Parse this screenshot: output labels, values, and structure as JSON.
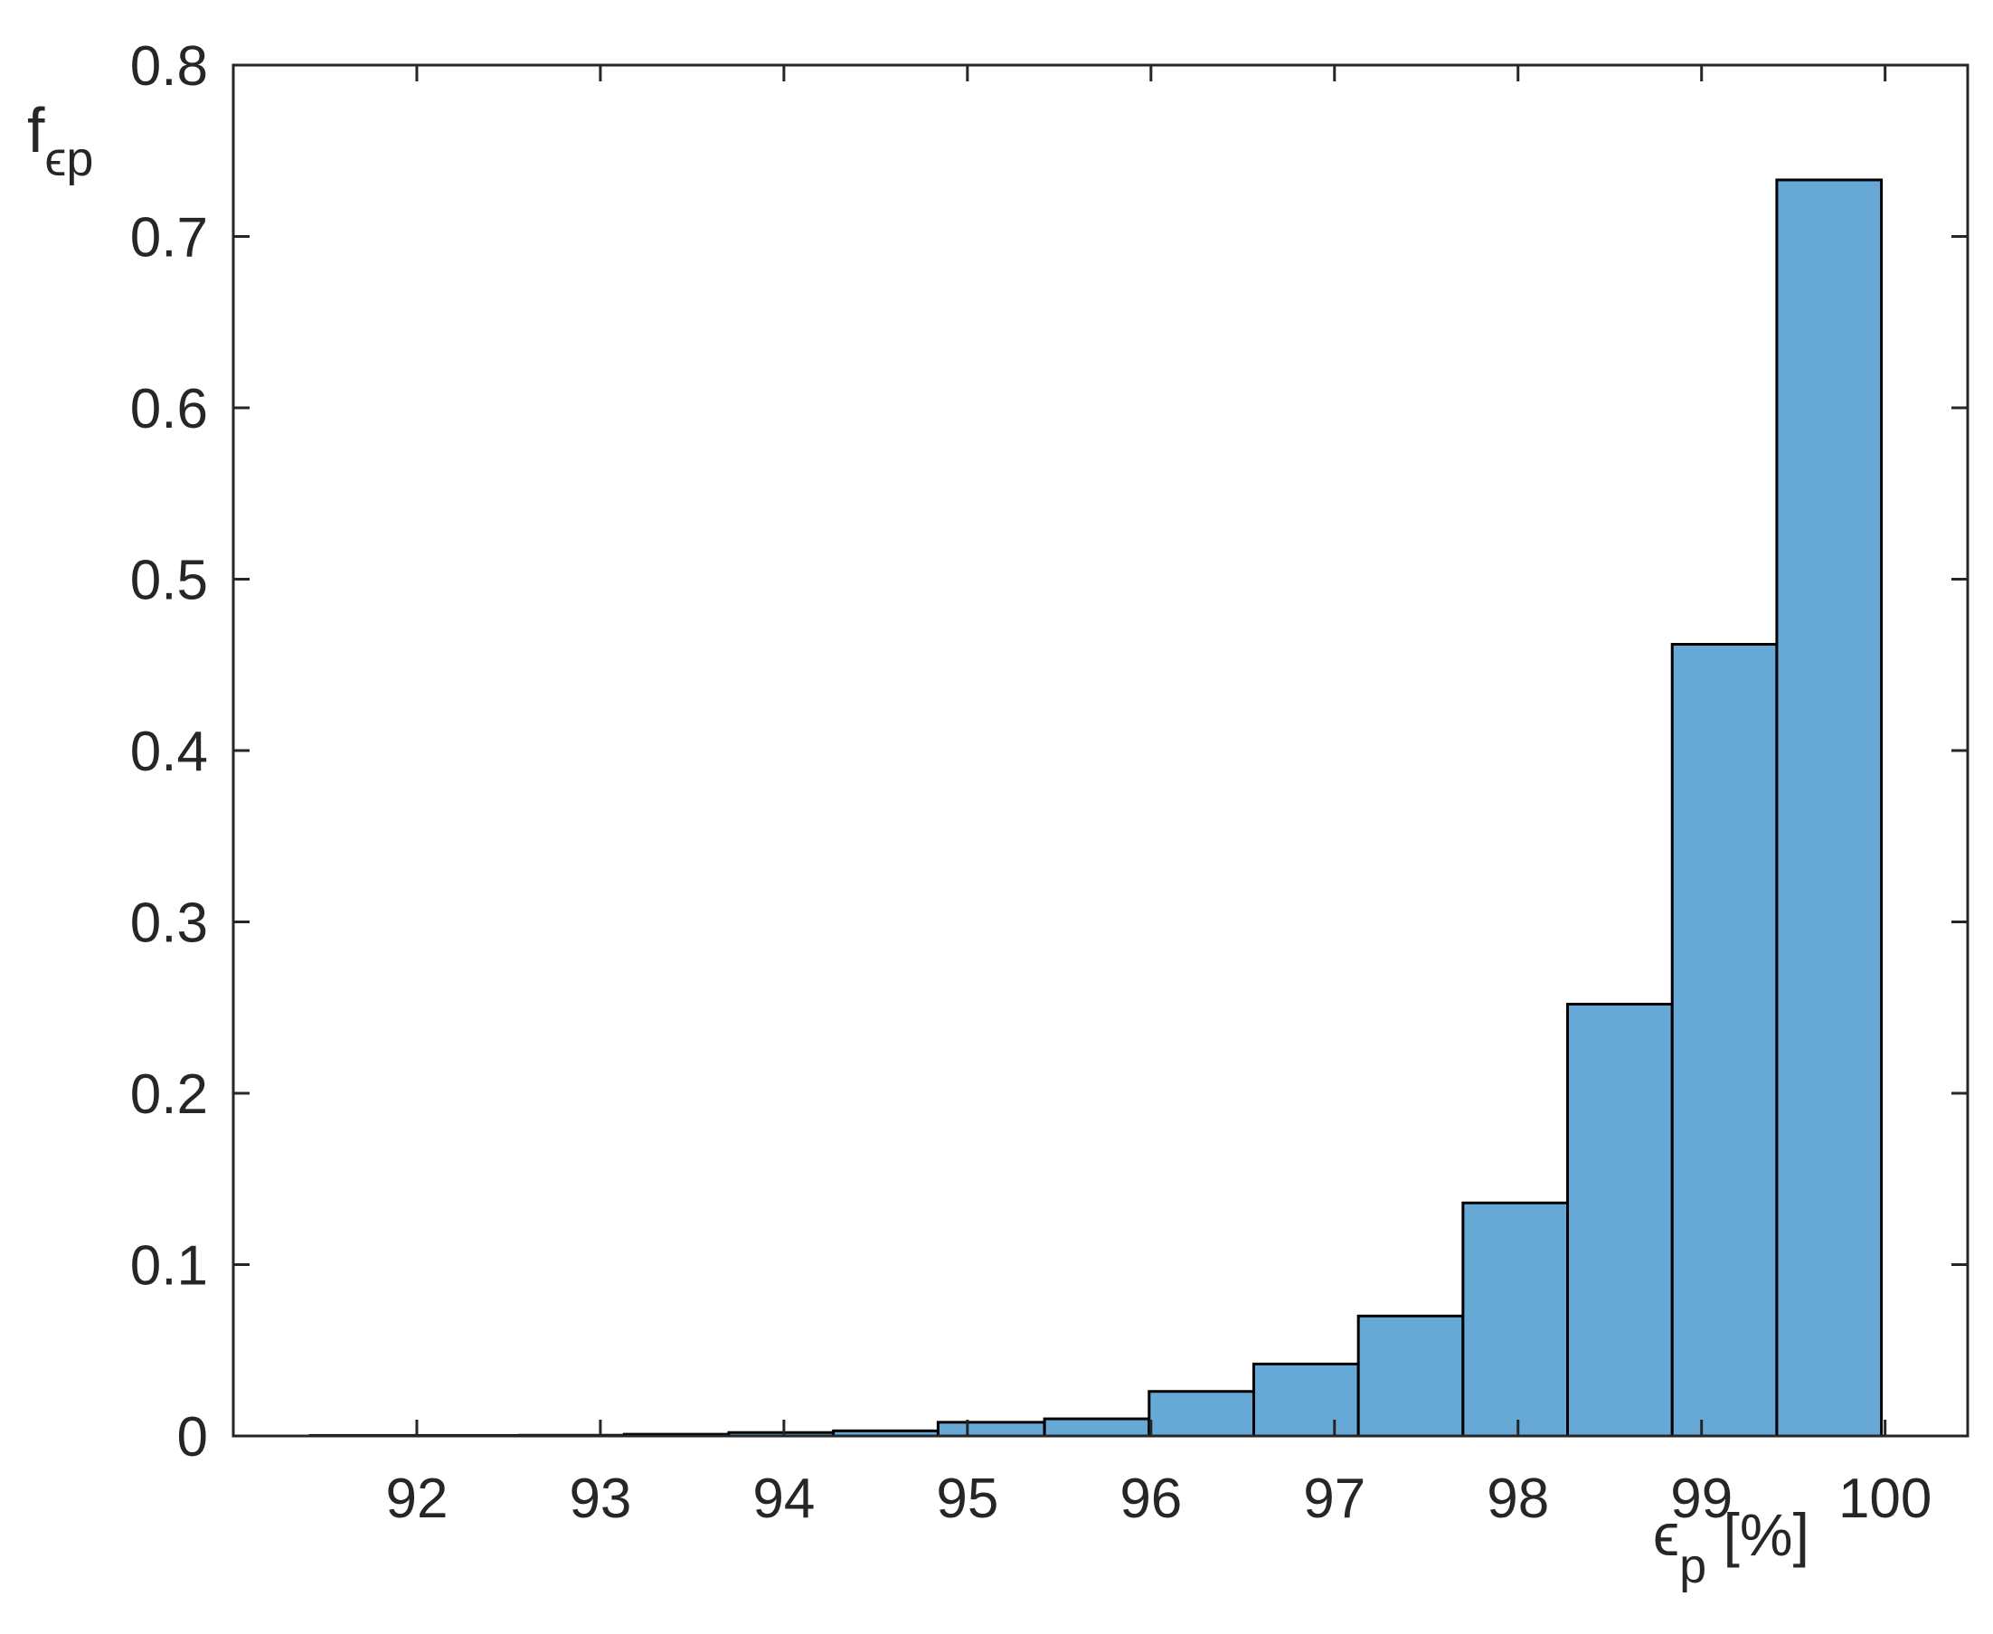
{
  "chart_data": {
    "type": "bar",
    "title": "",
    "xlabel": {
      "symbol": "ϵ",
      "subscript": "p",
      "unit": " [%]"
    },
    "ylabel": {
      "symbol": "f",
      "subscript": "ϵp"
    },
    "xlim": [
      91.0,
      100.45
    ],
    "ylim": [
      0,
      0.8
    ],
    "x_ticks": [
      92,
      93,
      94,
      95,
      96,
      97,
      98,
      99,
      100
    ],
    "x_tick_labels": [
      "92",
      "93",
      "94",
      "95",
      "96",
      "97",
      "98",
      "99",
      "100"
    ],
    "y_ticks": [
      0,
      0.1,
      0.2,
      0.3,
      0.4,
      0.5,
      0.6,
      0.7,
      0.8
    ],
    "y_tick_labels": [
      "0",
      "0.1",
      "0.2",
      "0.3",
      "0.4",
      "0.5",
      "0.6",
      "0.7",
      "0.8"
    ],
    "grid": false,
    "legend": "none",
    "bin_edges": [
      91.42,
      91.99,
      92.56,
      93.13,
      93.7,
      94.27,
      94.84,
      95.42,
      95.99,
      96.56,
      97.13,
      97.7,
      98.27,
      98.84,
      99.41,
      99.98
    ],
    "values": [
      0.0003,
      0.0003,
      0.0004,
      0.001,
      0.002,
      0.003,
      0.008,
      0.01,
      0.026,
      0.042,
      0.07,
      0.136,
      0.252,
      0.462,
      0.733
    ],
    "colors": {
      "bar_fill": "#66a9d6",
      "bar_edge": "#000000",
      "axis": "#262626",
      "text": "#262626"
    }
  }
}
